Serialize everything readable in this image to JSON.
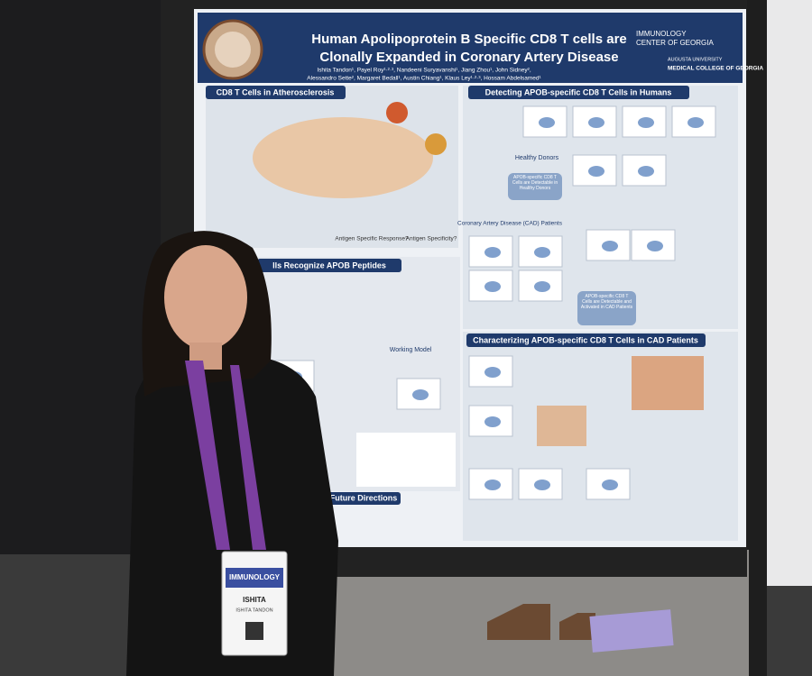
{
  "poster": {
    "title_lines": [
      "Human Apolipoprotein B Specific CD8 T cells are",
      "Clonally Expanded in Coronary Artery Disease"
    ],
    "authors_lines": [
      "Ishita Tandon¹, Payel Roy¹·²·³, Nandeeni Suryavanshi¹, Jiang Zhou¹, John Sidney²,",
      "Alessandro Sette², Margaret Bedall¹, Austin Chiang¹, Klaus Ley¹·²·³, Hossam Abdelsamed¹"
    ],
    "logo_right": [
      "IMMUNOLOGY",
      "CENTER OF GEORGIA",
      "AUGUSTA UNIVERSITY",
      "MEDICAL COLLEGE OF GEORGIA"
    ],
    "sections": [
      "CD8 T Cells in Atherosclerosis",
      "Detecting APOB-specific CD8 T Cells in Humans",
      "lls Recognize APOB Peptides",
      "Characterizing APOB-specific CD8 T Cells in CAD Patients",
      "Future Directions"
    ],
    "labels": [
      "Healthy Donors",
      "Coronary Artery Disease (CAD) Patients",
      "Antigen Specific Response?",
      "Antigen Specificity?",
      "Working Model",
      "APOB-specific CD8 T Cells are Detectable in Healthy Donors",
      "APOB-specific CD8 T Cells are Detectable and Activated in CAD Patients"
    ]
  },
  "badge": {
    "event": "IMMUNOLOGY",
    "name": "ISHITA",
    "full_name": "ISHITA TANDON"
  }
}
